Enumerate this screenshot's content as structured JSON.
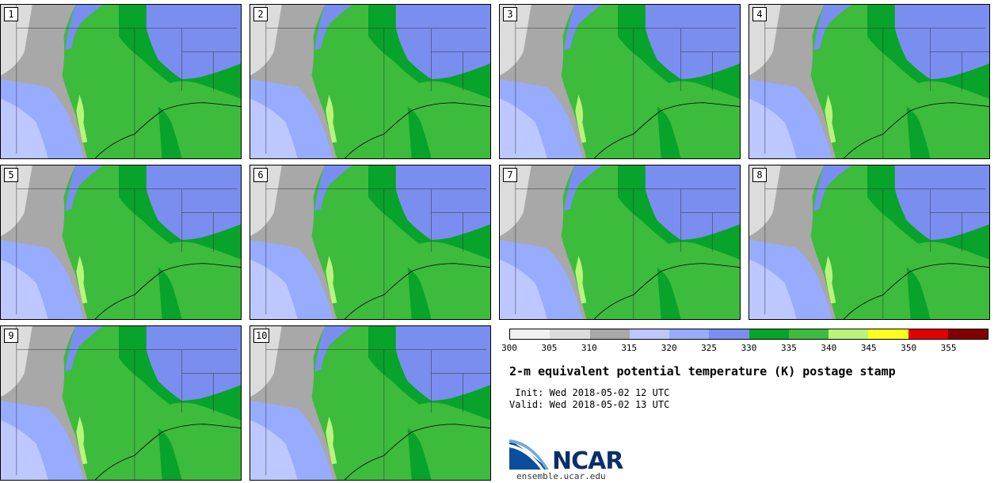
{
  "title": "2-m equivalent potential temperature (K) postage stamp",
  "init": " Init: Wed 2018-05-02 12 UTC",
  "valid": "Valid: Wed 2018-05-02 13 UTC",
  "logo": {
    "text": "NCAR",
    "url": "ensemble.ucar.edu"
  },
  "panels": [
    "1",
    "2",
    "3",
    "4",
    "5",
    "6",
    "7",
    "8",
    "9",
    "10"
  ],
  "colorbar": {
    "ticks": [
      "300",
      "305",
      "310",
      "315",
      "320",
      "325",
      "330",
      "335",
      "340",
      "345",
      "350",
      "355"
    ],
    "colors": [
      "#f0f0f0",
      "#dcdcdc",
      "#a8a8a8",
      "#bcc8ff",
      "#98acff",
      "#7a8ef0",
      "#07a32a",
      "#3dbb3d",
      "#b9f57a",
      "#ffff20",
      "#e00000",
      "#800000"
    ]
  },
  "map_colors": {
    "land_gray": "#a8a8a8",
    "light_gray": "#dcdcdc",
    "light_blue": "#bcc8ff",
    "mid_blue": "#98acff",
    "blue": "#7a8ef0",
    "dark_green": "#07a32a",
    "green": "#3dbb3d",
    "yellow_green": "#b9f57a"
  }
}
